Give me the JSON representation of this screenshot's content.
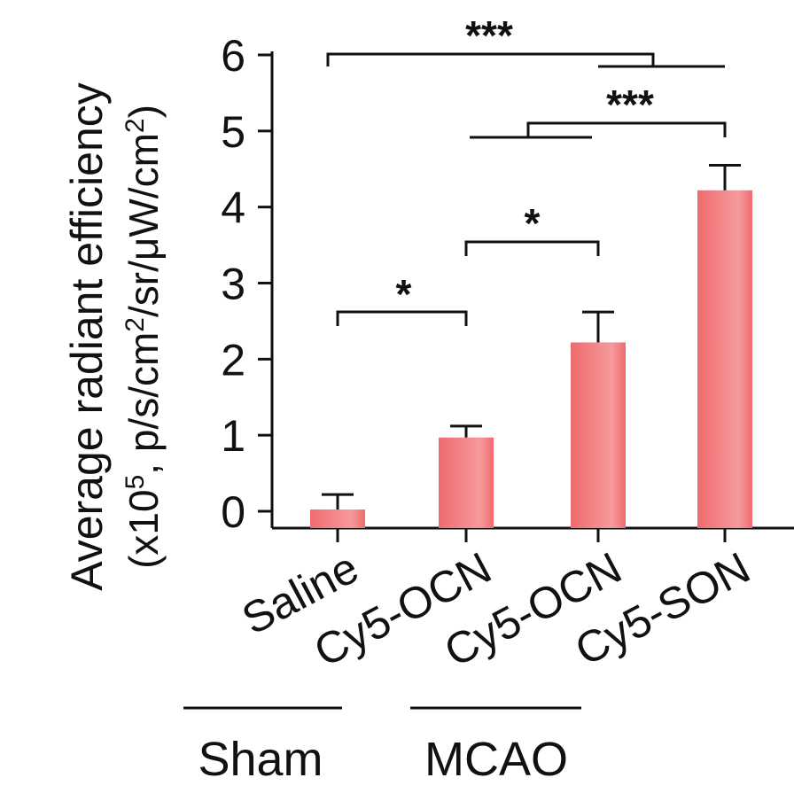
{
  "chart_data": {
    "type": "bar",
    "categories": [
      "Saline",
      "Cy5-OCN",
      "Cy5-OCN",
      "Cy5-SON"
    ],
    "values": [
      0.0,
      0.97,
      2.22,
      4.22
    ],
    "errors": [
      0.22,
      0.15,
      0.4,
      0.33
    ],
    "ylabel_line1": "Average radiant efficiency",
    "ylabel_line2": "(x10",
    "ylabel_exp1": "5",
    "ylabel_line2b": ", p/s/cm",
    "ylabel_exp2": "2",
    "ylabel_line2c": "/sr/μW/cm",
    "ylabel_exp3": "2",
    "ylabel_line2d": ")",
    "ylim": [
      -0.2,
      6.0
    ],
    "yticks": [
      "0",
      "1",
      "2",
      "3",
      "4",
      "5",
      "6"
    ],
    "bar_color": "#ef6b6e",
    "groups": [
      {
        "label": "Sham",
        "categories": [
          0
        ]
      },
      {
        "label": "MCAO",
        "categories": [
          1,
          2
        ]
      }
    ],
    "significance": [
      {
        "label": "*",
        "from": 0,
        "to": 1,
        "y": 2.6
      },
      {
        "label": "*",
        "from": 1,
        "to": 2,
        "y": 3.6
      },
      {
        "label": "***",
        "from_group": [
          1,
          2
        ],
        "to": 3,
        "y": 5.0
      },
      {
        "label": "***",
        "from": 0,
        "to_group": [
          2,
          3
        ],
        "y": 6.0
      }
    ]
  }
}
